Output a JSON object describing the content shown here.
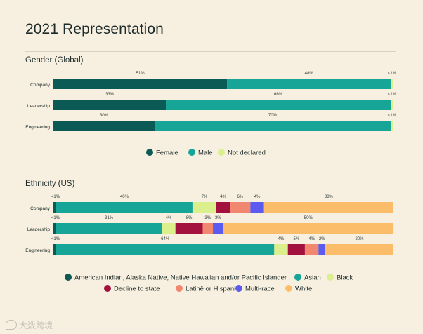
{
  "page": {
    "title": "2021 Representation"
  },
  "watermark": {
    "text": "大数跨境"
  },
  "chart_data": [
    {
      "type": "bar",
      "orientation": "horizontal",
      "stacked": true,
      "normalized": true,
      "title": "Gender (Global)",
      "categories": [
        "Company",
        "Leadership",
        "Engineering"
      ],
      "series": [
        {
          "name": "Female",
          "color": "#0c5a55",
          "values": [
            51,
            33,
            30
          ],
          "labels": [
            "51%",
            "33%",
            "30%"
          ]
        },
        {
          "name": "Male",
          "color": "#17a598",
          "values": [
            48,
            66,
            70
          ],
          "labels": [
            "48%",
            "66%",
            "70%"
          ]
        },
        {
          "name": "Not declared",
          "color": "#dbef8c",
          "values": [
            1,
            1,
            1
          ],
          "labels": [
            "<1%",
            "<1%",
            "<1%"
          ]
        }
      ],
      "legend_position": "bottom-center"
    },
    {
      "type": "bar",
      "orientation": "horizontal",
      "stacked": true,
      "normalized": true,
      "title": "Ethnicity (US)",
      "categories": [
        "Company",
        "Leadership",
        "Engineering"
      ],
      "series": [
        {
          "name": "American Indian, Alaska Native, Native Hawaiian and/or Pacific Islander",
          "color": "#0c5a55",
          "values": [
            1,
            1,
            1
          ],
          "labels": [
            "<1%",
            "<1%",
            "<1%"
          ]
        },
        {
          "name": "Asian",
          "color": "#17a598",
          "values": [
            40,
            31,
            64
          ],
          "labels": [
            "40%",
            "31%",
            "64%"
          ]
        },
        {
          "name": "Black",
          "color": "#dbef8c",
          "values": [
            7,
            4,
            4
          ],
          "labels": [
            "7%",
            "4%",
            "4%"
          ]
        },
        {
          "name": "Decline to state",
          "color": "#a3123f",
          "values": [
            4,
            8,
            5
          ],
          "labels": [
            "4%",
            "8%",
            "5%"
          ]
        },
        {
          "name": "Latinē or Hispanic",
          "color": "#f2876f",
          "values": [
            6,
            3,
            4
          ],
          "labels": [
            "6%",
            "3%",
            "4%"
          ]
        },
        {
          "name": "Multi-race",
          "color": "#5b5bf0",
          "values": [
            4,
            3,
            2
          ],
          "labels": [
            "4%",
            "3%",
            "2%"
          ]
        },
        {
          "name": "White",
          "color": "#fcbd6a",
          "values": [
            38,
            50,
            20
          ],
          "labels": [
            "38%",
            "50%",
            "20%"
          ]
        }
      ],
      "legend_position": "bottom-center"
    }
  ]
}
